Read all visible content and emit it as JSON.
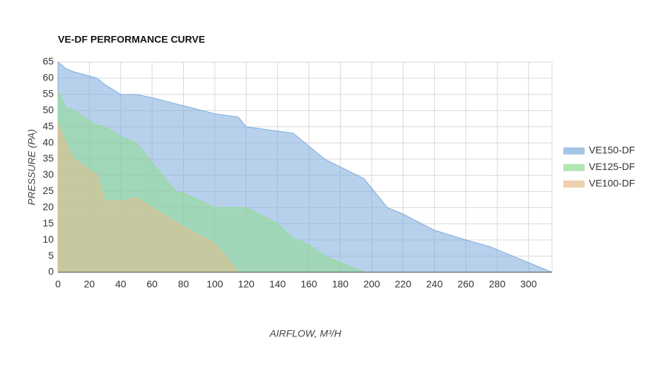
{
  "chart_data": {
    "type": "area",
    "title": "VE-DF PERFORMANCE CURVE",
    "x_label": "AIRFLOW, M³/H",
    "y_label": "PRESSURE (PA)",
    "xlim": [
      0,
      315
    ],
    "ylim": [
      0,
      65
    ],
    "xticks": [
      0,
      20,
      40,
      60,
      80,
      100,
      120,
      140,
      160,
      180,
      200,
      220,
      240,
      260,
      280,
      300
    ],
    "yticks": [
      0,
      5,
      10,
      15,
      20,
      25,
      30,
      35,
      40,
      45,
      50,
      55,
      60,
      65
    ],
    "grid": true,
    "legend": "right",
    "series": [
      {
        "name": "VE150-DF",
        "color": "#7cacdc",
        "x": [
          0,
          5,
          10,
          25,
          30,
          40,
          50,
          60,
          80,
          100,
          115,
          120,
          150,
          160,
          170,
          195,
          210,
          220,
          230,
          240,
          260,
          275,
          290,
          315
        ],
        "values": [
          65,
          63,
          62,
          60,
          58,
          55,
          55,
          54,
          51.5,
          49,
          48,
          45,
          43,
          39,
          35,
          29,
          20,
          18,
          15.5,
          13,
          10,
          8,
          5,
          0
        ]
      },
      {
        "name": "VE125-DF",
        "color": "#90dc90",
        "x": [
          0,
          5,
          10,
          25,
          30,
          40,
          50,
          60,
          75,
          80,
          100,
          120,
          140,
          150,
          160,
          170,
          180,
          195
        ],
        "values": [
          56,
          51,
          50,
          45.5,
          45,
          42,
          40,
          34,
          25,
          24.5,
          20,
          20,
          15,
          10.5,
          8.5,
          5,
          3,
          0
        ]
      },
      {
        "name": "VE100-DF",
        "color": "#e6be8c",
        "x": [
          0,
          5,
          10,
          25,
          30,
          40,
          50,
          60,
          80,
          100,
          115
        ],
        "values": [
          46,
          40,
          35,
          30,
          22,
          22,
          23,
          20,
          14,
          9,
          0
        ]
      }
    ]
  }
}
